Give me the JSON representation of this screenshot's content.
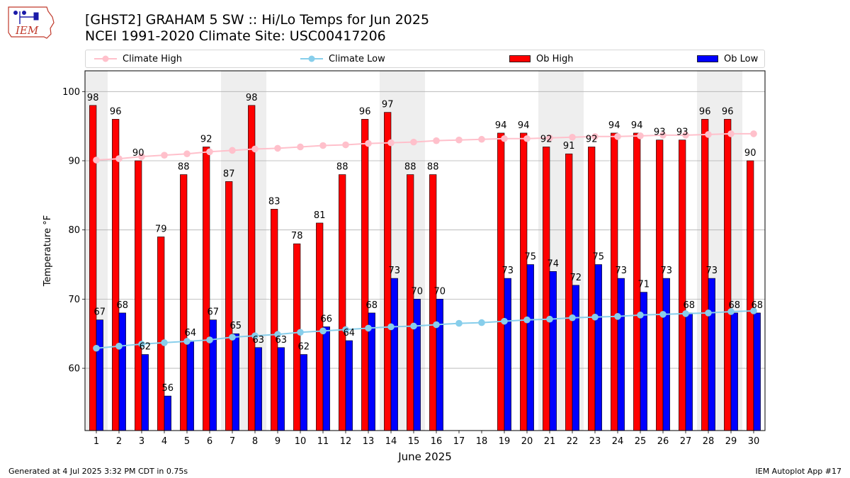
{
  "header": {
    "logo_text": "IEM",
    "title_line1": "[GHST2] GRAHAM 5 SW :: Hi/Lo Temps for Jun 2025",
    "title_line2": "NCEI 1991-2020 Climate Site: USC00417206"
  },
  "legend": {
    "items": [
      {
        "label": "Climate High",
        "kind": "line",
        "color": "#ffc0cb"
      },
      {
        "label": "Climate Low",
        "kind": "line",
        "color": "#87ceeb"
      },
      {
        "label": "Ob High",
        "kind": "bar",
        "color": "#ff0000"
      },
      {
        "label": "Ob Low",
        "kind": "bar",
        "color": "#0000ff"
      }
    ],
    "placement": "top, above plot, single row"
  },
  "chart_data": {
    "type": "bar",
    "xlabel": "June 2025",
    "ylabel": "Temperature °F",
    "ylim": [
      51,
      103
    ],
    "yticks": [
      60,
      70,
      80,
      90,
      100
    ],
    "grid": "horizontal",
    "weekend_shading": [
      [
        1,
        1
      ],
      [
        7,
        8
      ],
      [
        14,
        15
      ],
      [
        21,
        22
      ],
      [
        28,
        29
      ]
    ],
    "categories": [
      "1",
      "2",
      "3",
      "4",
      "5",
      "6",
      "7",
      "8",
      "9",
      "10",
      "11",
      "12",
      "13",
      "14",
      "15",
      "16",
      "17",
      "18",
      "19",
      "20",
      "21",
      "22",
      "23",
      "24",
      "25",
      "26",
      "27",
      "28",
      "29",
      "30"
    ],
    "series": [
      {
        "name": "Ob High",
        "kind": "bar",
        "color": "#ff0000",
        "values": [
          98,
          96,
          90,
          79,
          88,
          92,
          87,
          98,
          83,
          78,
          81,
          88,
          96,
          97,
          88,
          88,
          null,
          null,
          94,
          94,
          92,
          91,
          92,
          94,
          94,
          93,
          93,
          96,
          96,
          90
        ]
      },
      {
        "name": "Ob Low",
        "kind": "bar",
        "color": "#0000ff",
        "values": [
          67,
          68,
          62,
          56,
          64,
          67,
          65,
          63,
          63,
          62,
          66,
          64,
          68,
          73,
          70,
          70,
          null,
          null,
          73,
          75,
          74,
          72,
          75,
          73,
          71,
          73,
          68,
          73,
          68,
          68
        ]
      },
      {
        "name": "Climate High",
        "kind": "line",
        "color": "#ffc0cb",
        "values": [
          90.1,
          90.3,
          90.6,
          90.8,
          91.0,
          91.3,
          91.5,
          91.7,
          91.8,
          92.0,
          92.2,
          92.3,
          92.5,
          92.6,
          92.7,
          92.9,
          93.0,
          93.1,
          93.2,
          93.2,
          93.3,
          93.4,
          93.5,
          93.5,
          93.6,
          93.7,
          93.7,
          93.8,
          93.9,
          93.9
        ]
      },
      {
        "name": "Climate Low",
        "kind": "line",
        "color": "#87ceeb",
        "values": [
          62.9,
          63.2,
          63.5,
          63.7,
          63.9,
          64.1,
          64.5,
          64.7,
          64.9,
          65.2,
          65.4,
          65.6,
          65.8,
          66.0,
          66.1,
          66.3,
          66.5,
          66.6,
          66.8,
          67.0,
          67.1,
          67.3,
          67.4,
          67.5,
          67.7,
          67.8,
          67.9,
          68.0,
          68.2,
          68.3
        ]
      }
    ]
  },
  "footer": {
    "left": "Generated at 4 Jul 2025 3:32 PM CDT in 0.75s",
    "right": "IEM Autoplot App #17"
  }
}
